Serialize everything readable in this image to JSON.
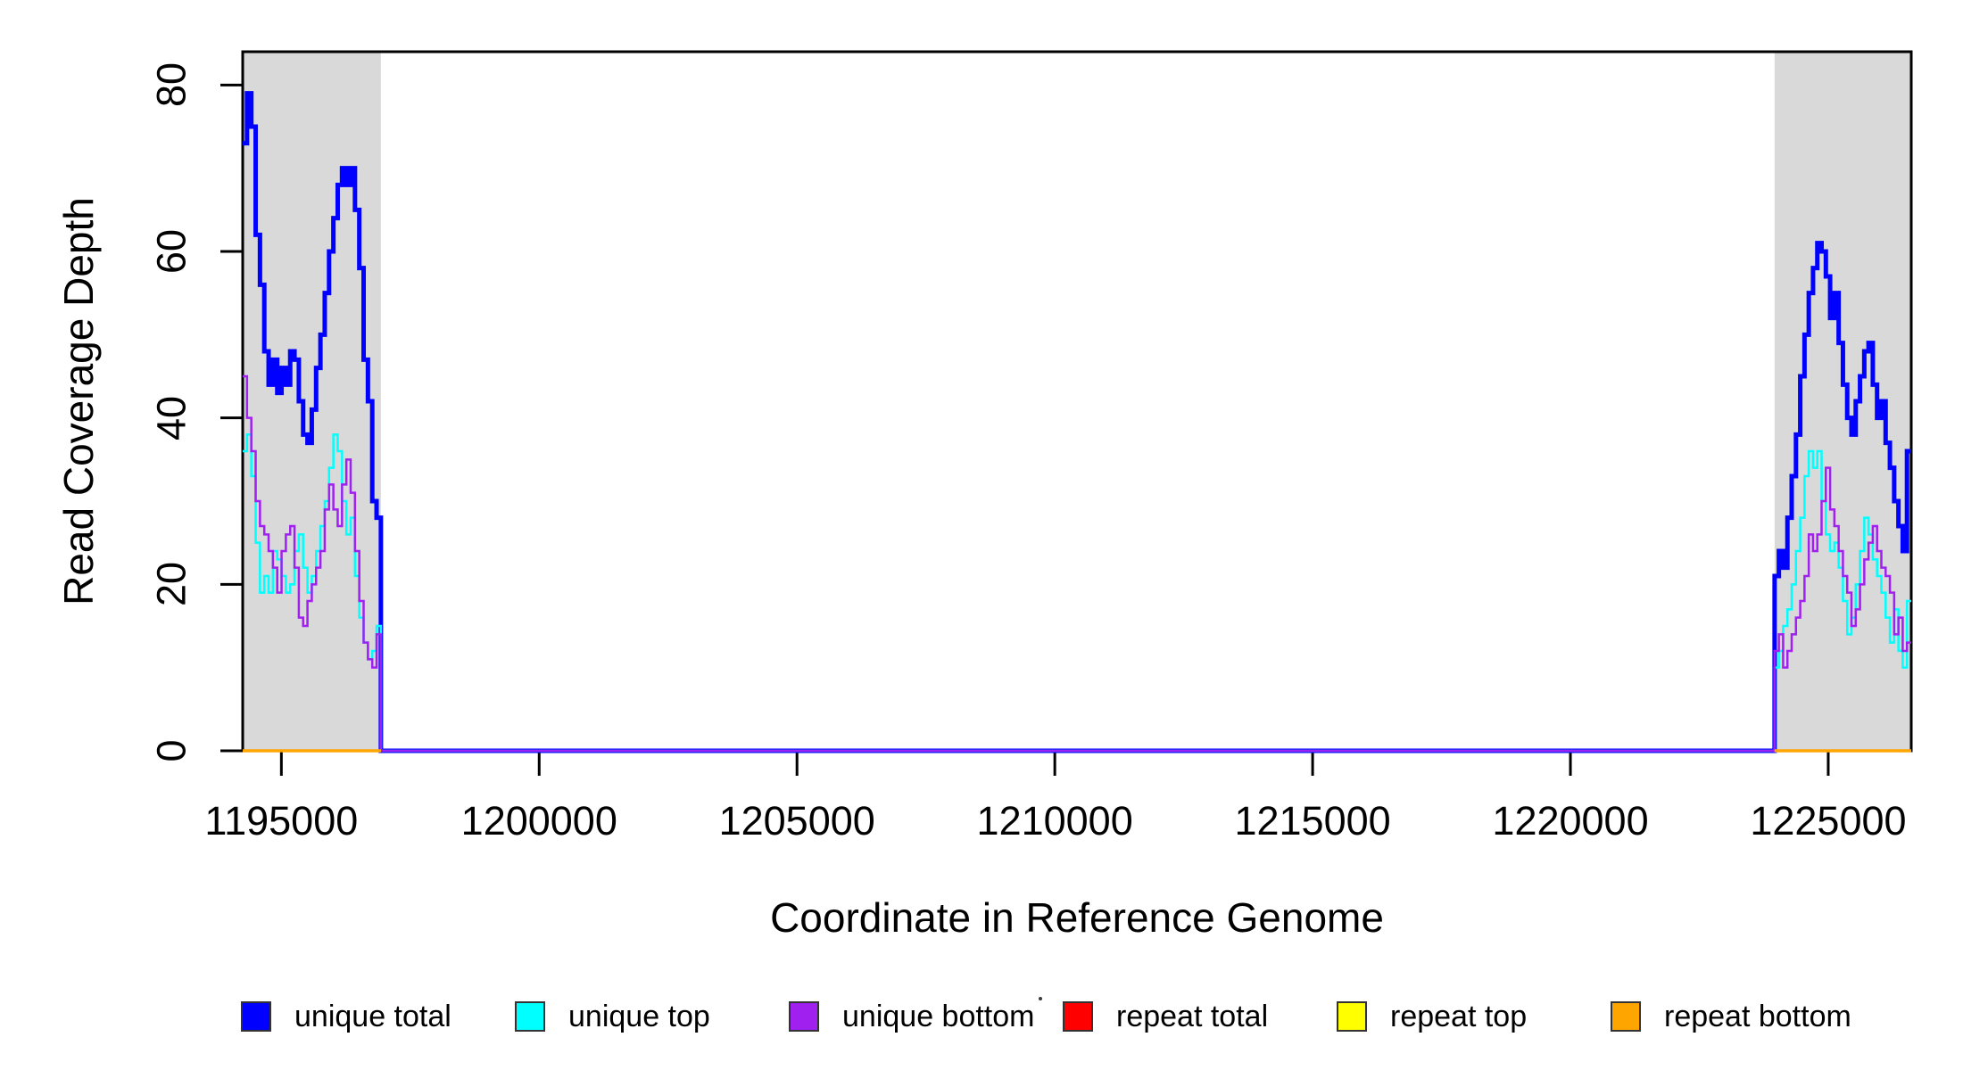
{
  "chart_data": {
    "type": "line",
    "line_style": "step",
    "title": "",
    "xlabel": "Coordinate in Reference Genome",
    "ylabel": "Read Coverage Depth",
    "xlim": [
      1194250,
      1226610
    ],
    "ylim": [
      0,
      84
    ],
    "x_ticks": [
      1195000,
      1200000,
      1205000,
      1210000,
      1215000,
      1220000,
      1225000
    ],
    "y_ticks": [
      0,
      20,
      40,
      60,
      80
    ],
    "grid": false,
    "legend_position": "bottom-horizontal",
    "shaded_region_color": "#d9d9d9",
    "shaded_regions": [
      {
        "x_start": 1194250,
        "x_end": 1196930
      },
      {
        "x_start": 1223960,
        "x_end": 1226610
      }
    ],
    "series": [
      {
        "name": "unique total",
        "color": "#0000ff",
        "line_width": 5,
        "zero_between_regions": true,
        "regions": [
          {
            "x_start": 1194250,
            "x_end": 1196930,
            "values": [
              73,
              79,
              75,
              62,
              56,
              48,
              44,
              47,
              43,
              46,
              44,
              48,
              47,
              42,
              38,
              37,
              41,
              46,
              50,
              55,
              60,
              64,
              68,
              70,
              68,
              70,
              65,
              58,
              47,
              42,
              30,
              28
            ]
          },
          {
            "x_start": 1223960,
            "x_end": 1226610,
            "values": [
              21,
              24,
              22,
              28,
              33,
              38,
              45,
              50,
              55,
              58,
              61,
              60,
              57,
              52,
              55,
              49,
              44,
              40,
              38,
              42,
              45,
              48,
              49,
              44,
              40,
              42,
              37,
              34,
              30,
              27,
              24,
              36
            ]
          }
        ]
      },
      {
        "name": "unique top",
        "color": "#00ffff",
        "line_width": 2.5,
        "zero_between_regions": true,
        "regions": [
          {
            "x_start": 1194250,
            "x_end": 1196930,
            "values": [
              36,
              38,
              33,
              25,
              19,
              21,
              19,
              24,
              23,
              21,
              19,
              20,
              24,
              26,
              22,
              19,
              21,
              24,
              27,
              30,
              34,
              38,
              36,
              30,
              26,
              28,
              21,
              16,
              13,
              11,
              12,
              15
            ]
          },
          {
            "x_start": 1223960,
            "x_end": 1226610,
            "values": [
              10,
              12,
              15,
              17,
              20,
              24,
              28,
              33,
              36,
              34,
              36,
              30,
              26,
              24,
              25,
              22,
              18,
              14,
              16,
              20,
              24,
              28,
              26,
              23,
              21,
              19,
              16,
              13,
              17,
              12,
              10,
              18
            ]
          }
        ]
      },
      {
        "name": "unique bottom",
        "color": "#a020f0",
        "line_width": 2.5,
        "zero_between_regions": true,
        "regions": [
          {
            "x_start": 1194250,
            "x_end": 1196930,
            "values": [
              45,
              40,
              36,
              30,
              27,
              26,
              24,
              22,
              19,
              24,
              26,
              27,
              22,
              16,
              15,
              18,
              20,
              22,
              24,
              29,
              32,
              29,
              27,
              32,
              35,
              31,
              24,
              18,
              13,
              11,
              10,
              14
            ]
          },
          {
            "x_start": 1223960,
            "x_end": 1226610,
            "values": [
              12,
              14,
              10,
              12,
              14,
              16,
              18,
              21,
              26,
              24,
              26,
              30,
              34,
              29,
              27,
              24,
              21,
              19,
              15,
              17,
              20,
              23,
              25,
              27,
              24,
              22,
              21,
              19,
              14,
              16,
              12,
              13
            ]
          }
        ]
      },
      {
        "name": "repeat total",
        "color": "#ff0000",
        "line_width": 3,
        "zero_between_regions": false,
        "regions": [
          {
            "x_start": 1194250,
            "x_end": 1196930,
            "constant": 0
          },
          {
            "x_start": 1223960,
            "x_end": 1226610,
            "constant": 0
          }
        ]
      },
      {
        "name": "repeat top",
        "color": "#ffff00",
        "line_width": 3,
        "zero_between_regions": false,
        "regions": [
          {
            "x_start": 1194250,
            "x_end": 1196930,
            "constant": 0
          },
          {
            "x_start": 1223960,
            "x_end": 1226610,
            "constant": 0
          }
        ]
      },
      {
        "name": "repeat bottom",
        "color": "#ffa500",
        "line_width": 3.5,
        "zero_between_regions": false,
        "regions": [
          {
            "x_start": 1194250,
            "x_end": 1196930,
            "constant": 0
          },
          {
            "x_start": 1223960,
            "x_end": 1226610,
            "constant": 0
          }
        ]
      }
    ],
    "legend": [
      {
        "label": "unique total",
        "color": "#0000ff"
      },
      {
        "label": "unique top",
        "color": "#00ffff"
      },
      {
        "label": "unique bottom",
        "color": "#a020f0"
      },
      {
        "label": "repeat total",
        "color": "#ff0000"
      },
      {
        "label": "repeat top",
        "color": "#ffff00"
      },
      {
        "label": "repeat bottom",
        "color": "#ffa500"
      }
    ]
  }
}
